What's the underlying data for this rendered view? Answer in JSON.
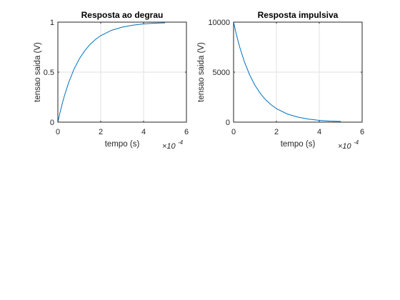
{
  "chart_data": [
    {
      "type": "line",
      "title": "Resposta ao degrau",
      "xlabel": "tempo (s)",
      "ylabel": "tensao saida (V)",
      "x_multiplier": {
        "base": "×10",
        "exponent": "-4"
      },
      "xlim": [
        0,
        0.0006
      ],
      "ylim": [
        0,
        1
      ],
      "xticks": [
        0,
        0.0002,
        0.0004,
        0.0006
      ],
      "xtick_labels": [
        "0",
        "2",
        "4",
        "6"
      ],
      "yticks": [
        0,
        0.5,
        1
      ],
      "ytick_labels": [
        "0",
        "0.5",
        "1"
      ],
      "grid": true,
      "line_color": "#0072bd",
      "series": [
        {
          "x": [
            0,
            1e-05,
            2e-05,
            3e-05,
            5e-05,
            7.5e-05,
            0.0001,
            0.000125,
            0.00015,
            0.000175,
            0.0002,
            0.00025,
            0.0003,
            0.00035,
            0.0004,
            0.00045,
            0.0005
          ],
          "values": [
            0,
            0.095,
            0.181,
            0.259,
            0.393,
            0.528,
            0.632,
            0.713,
            0.777,
            0.826,
            0.865,
            0.918,
            0.95,
            0.97,
            0.982,
            0.989,
            0.993
          ]
        }
      ]
    },
    {
      "type": "line",
      "title": "Resposta impulsiva",
      "xlabel": "tempo (s)",
      "ylabel": "tensao saida (V)",
      "x_multiplier": {
        "base": "×10",
        "exponent": "-4"
      },
      "xlim": [
        0,
        0.0006
      ],
      "ylim": [
        0,
        10000
      ],
      "xticks": [
        0,
        0.0002,
        0.0004,
        0.0006
      ],
      "xtick_labels": [
        "0",
        "2",
        "4",
        "6"
      ],
      "yticks": [
        0,
        5000,
        10000
      ],
      "ytick_labels": [
        "0",
        "5000",
        "10000"
      ],
      "grid": true,
      "line_color": "#0072bd",
      "series": [
        {
          "x": [
            0,
            1e-05,
            2e-05,
            3e-05,
            5e-05,
            7.5e-05,
            0.0001,
            0.000125,
            0.00015,
            0.000175,
            0.0002,
            0.00025,
            0.0003,
            0.00035,
            0.0004,
            0.00045,
            0.0005
          ],
          "values": [
            10000,
            9048,
            8187,
            7408,
            6065,
            4724,
            3679,
            2865,
            2231,
            1738,
            1353,
            821,
            498,
            302,
            183,
            111,
            67
          ]
        }
      ]
    }
  ]
}
